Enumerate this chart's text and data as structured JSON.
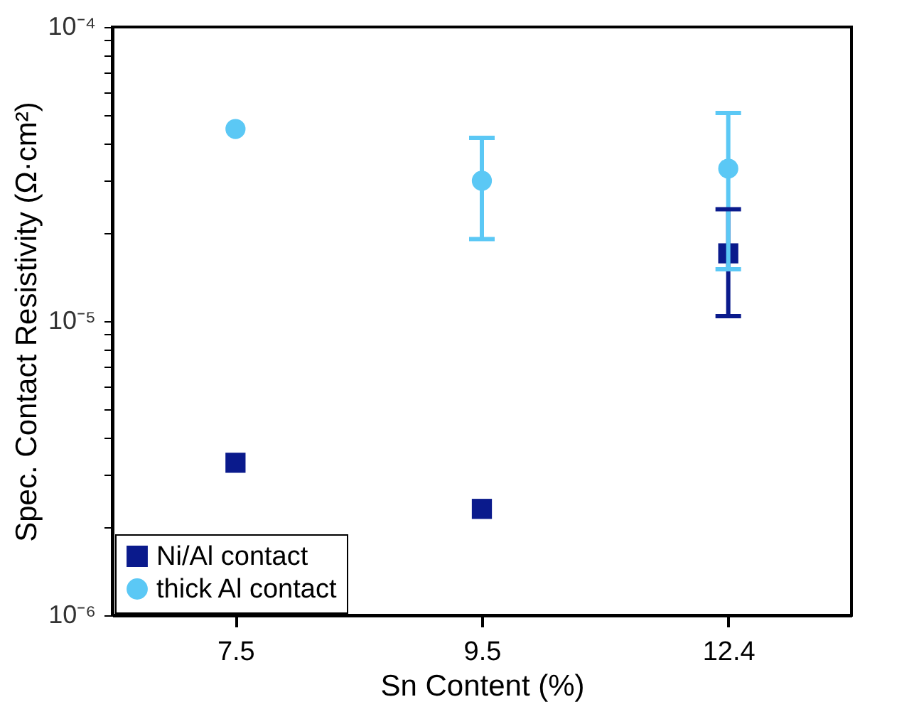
{
  "chart_data": {
    "type": "scatter",
    "xlabel": "Sn Content (%)",
    "ylabel": "Spec. Contact Resistivity (Ω·cm²)",
    "categories": [
      "7.5",
      "9.5",
      "12.4"
    ],
    "series": [
      {
        "name": "Ni/Al contact",
        "color": "#0a1a8c",
        "marker": "square",
        "values": [
          3.3e-06,
          2.3e-06,
          1.7e-05
        ],
        "errors": [
          null,
          null,
          [
            1.04e-05,
            2.4e-05
          ]
        ]
      },
      {
        "name": "thick Al contact",
        "color": "#5bc8f5",
        "marker": "circle",
        "values": [
          4.5e-05,
          3e-05,
          3.3e-05
        ],
        "errors": [
          null,
          [
            1.9e-05,
            4.2e-05
          ],
          [
            1.5e-05,
            5.1e-05
          ]
        ]
      }
    ],
    "log": "y",
    "ylim": [
      1e-06,
      0.0001
    ],
    "yticks": [
      {
        "value": 1e-06,
        "label": "10⁻⁶"
      },
      {
        "value": 2e-06,
        "label": null
      },
      {
        "value": 3e-06,
        "label": null
      },
      {
        "value": 4e-06,
        "label": null
      },
      {
        "value": 5e-06,
        "label": null
      },
      {
        "value": 6e-06,
        "label": null
      },
      {
        "value": 7e-06,
        "label": null
      },
      {
        "value": 8e-06,
        "label": null
      },
      {
        "value": 9e-06,
        "label": null
      },
      {
        "value": 1e-05,
        "label": "10⁻⁵"
      },
      {
        "value": 2e-05,
        "label": null
      },
      {
        "value": 3e-05,
        "label": null
      },
      {
        "value": 4e-05,
        "label": null
      },
      {
        "value": 5e-05,
        "label": null
      },
      {
        "value": 6e-05,
        "label": null
      },
      {
        "value": 7e-05,
        "label": null
      },
      {
        "value": 8e-05,
        "label": null
      },
      {
        "value": 9e-05,
        "label": null
      },
      {
        "value": 0.0001,
        "label": "10⁻⁴"
      }
    ],
    "grid": false,
    "legend": "bottom left"
  }
}
